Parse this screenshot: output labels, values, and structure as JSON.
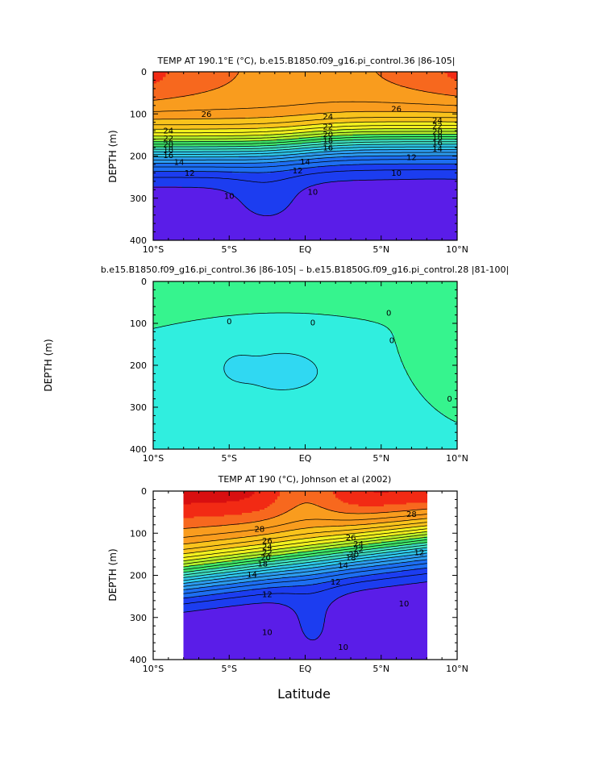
{
  "figure": {
    "xlabel": "Latitude"
  },
  "chart_data": [
    {
      "type": "heatmap",
      "title": "TEMP AT 190.1°E (°C), b.e15.B1850.f09_g16.pi_control.36  |86-105|",
      "xlabel": "",
      "ylabel": "DEPTH (m)",
      "xlim": [
        -10,
        10
      ],
      "ylim": [
        400,
        0
      ],
      "x_ticks": [
        -10,
        -5,
        0,
        5,
        10
      ],
      "x_tick_labels": [
        "10°S",
        "5°S",
        "EQ",
        "5°N",
        "10°N"
      ],
      "y_ticks": [
        0,
        100,
        200,
        300,
        400
      ],
      "y_tick_labels": [
        "0",
        "100",
        "200",
        "300",
        "400"
      ],
      "levels": [
        8,
        10,
        12,
        14,
        16,
        18,
        20,
        22,
        24,
        26,
        28
      ],
      "contour_labels": [
        {
          "text": "26",
          "lat": -6.5,
          "depth": 100
        },
        {
          "text": "24",
          "lat": -9.0,
          "depth": 140
        },
        {
          "text": "22",
          "lat": -9.0,
          "depth": 158
        },
        {
          "text": "20",
          "lat": -9.0,
          "depth": 172
        },
        {
          "text": "18",
          "lat": -9.0,
          "depth": 185
        },
        {
          "text": "16",
          "lat": -9.0,
          "depth": 198
        },
        {
          "text": "14",
          "lat": -8.3,
          "depth": 214
        },
        {
          "text": "12",
          "lat": -7.6,
          "depth": 240
        },
        {
          "text": "10",
          "lat": -5.0,
          "depth": 295
        },
        {
          "text": "24",
          "lat": 1.5,
          "depth": 106
        },
        {
          "text": "22",
          "lat": 1.5,
          "depth": 130
        },
        {
          "text": "20",
          "lat": 1.5,
          "depth": 148
        },
        {
          "text": "18",
          "lat": 1.5,
          "depth": 163
        },
        {
          "text": "16",
          "lat": 1.5,
          "depth": 180
        },
        {
          "text": "14",
          "lat": 0.0,
          "depth": 213
        },
        {
          "text": "12",
          "lat": -0.5,
          "depth": 234
        },
        {
          "text": "10",
          "lat": 0.5,
          "depth": 285
        },
        {
          "text": "26",
          "lat": 6.0,
          "depth": 88
        },
        {
          "text": "24",
          "lat": 8.7,
          "depth": 115
        },
        {
          "text": "22",
          "lat": 8.7,
          "depth": 128
        },
        {
          "text": "20",
          "lat": 8.7,
          "depth": 142
        },
        {
          "text": "18",
          "lat": 8.7,
          "depth": 155
        },
        {
          "text": "16",
          "lat": 8.7,
          "depth": 168
        },
        {
          "text": "14",
          "lat": 8.7,
          "depth": 183
        },
        {
          "text": "12",
          "lat": 7.0,
          "depth": 203
        },
        {
          "text": "10",
          "lat": 6.0,
          "depth": 240
        }
      ]
    },
    {
      "type": "heatmap",
      "title": "b.e15.B1850.f09_g16.pi_control.36 |86-105| – b.e15.B1850G.f09_g16.pi_control.28 |81-100|",
      "xlabel": "",
      "ylabel": "DEPTH (m)",
      "xlim": [
        -10,
        10
      ],
      "ylim": [
        400,
        0
      ],
      "x_ticks": [
        -10,
        -5,
        0,
        5,
        10
      ],
      "x_tick_labels": [
        "10°S",
        "5°S",
        "EQ",
        "5°N",
        "10°N"
      ],
      "y_ticks": [
        0,
        100,
        200,
        300,
        400
      ],
      "y_tick_labels": [
        "0",
        "100",
        "200",
        "300",
        "400"
      ],
      "levels": [
        -1,
        0,
        1
      ],
      "contour_labels": [
        {
          "text": "0",
          "lat": -5.0,
          "depth": 95
        },
        {
          "text": "0",
          "lat": 0.5,
          "depth": 98
        },
        {
          "text": "0",
          "lat": 5.5,
          "depth": 75
        },
        {
          "text": "0",
          "lat": 5.7,
          "depth": 140
        },
        {
          "text": "0",
          "lat": 9.5,
          "depth": 280
        }
      ]
    },
    {
      "type": "heatmap",
      "title": "TEMP AT 190 (°C), Johnson et al (2002)",
      "xlabel": "",
      "ylabel": "DEPTH (m)",
      "xlim": [
        -10,
        10
      ],
      "ylim": [
        400,
        0
      ],
      "data_lat_range": [
        -8,
        8
      ],
      "x_ticks": [
        -10,
        -5,
        0,
        5,
        10
      ],
      "x_tick_labels": [
        "10°S",
        "5°S",
        "EQ",
        "5°N",
        "10°N"
      ],
      "y_ticks": [
        0,
        100,
        200,
        300,
        400
      ],
      "y_tick_labels": [
        "0",
        "100",
        "200",
        "300",
        "400"
      ],
      "levels": [
        8,
        10,
        12,
        14,
        16,
        18,
        20,
        22,
        24,
        26,
        28
      ],
      "contour_labels": [
        {
          "text": "28",
          "lat": -3.0,
          "depth": 90
        },
        {
          "text": "26",
          "lat": -2.5,
          "depth": 118
        },
        {
          "text": "24",
          "lat": -2.5,
          "depth": 132
        },
        {
          "text": "22",
          "lat": -2.5,
          "depth": 145
        },
        {
          "text": "20",
          "lat": -2.6,
          "depth": 158
        },
        {
          "text": "18",
          "lat": -2.8,
          "depth": 172
        },
        {
          "text": "14",
          "lat": -3.5,
          "depth": 198
        },
        {
          "text": "12",
          "lat": -2.5,
          "depth": 245
        },
        {
          "text": "10",
          "lat": -2.5,
          "depth": 335
        },
        {
          "text": "26",
          "lat": 3.0,
          "depth": 110
        },
        {
          "text": "24",
          "lat": 3.5,
          "depth": 125
        },
        {
          "text": "22",
          "lat": 3.5,
          "depth": 138
        },
        {
          "text": "20",
          "lat": 3.2,
          "depth": 150
        },
        {
          "text": "18",
          "lat": 3.0,
          "depth": 158
        },
        {
          "text": "14",
          "lat": 2.5,
          "depth": 176
        },
        {
          "text": "12",
          "lat": 2.0,
          "depth": 215
        },
        {
          "text": "10",
          "lat": 2.5,
          "depth": 370
        },
        {
          "text": "28",
          "lat": 7.0,
          "depth": 55
        },
        {
          "text": "12",
          "lat": 7.5,
          "depth": 145
        },
        {
          "text": "10",
          "lat": 6.5,
          "depth": 267
        }
      ]
    }
  ]
}
